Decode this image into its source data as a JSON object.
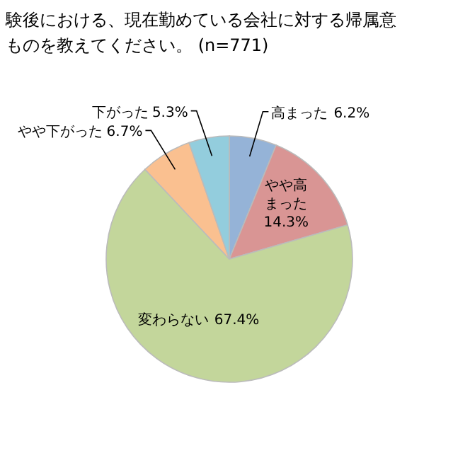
{
  "chart_data": {
    "type": "pie",
    "title": "験後における、現在勤めている会社に対する帰属意",
    "subtitle": "ものを教えてください。 (n=771)",
    "categories": [
      "高まった",
      "やや高まった",
      "変わらない",
      "やや下がった",
      "下がった"
    ],
    "values": [
      6.2,
      14.3,
      67.4,
      6.7,
      5.3
    ],
    "colors": [
      "#95b3d7",
      "#d99594",
      "#c3d69b",
      "#fac090",
      "#93cddd"
    ],
    "value_labels": [
      "6.2%",
      "14.3%",
      "67.4%",
      "6.7%",
      "5.3%"
    ]
  }
}
